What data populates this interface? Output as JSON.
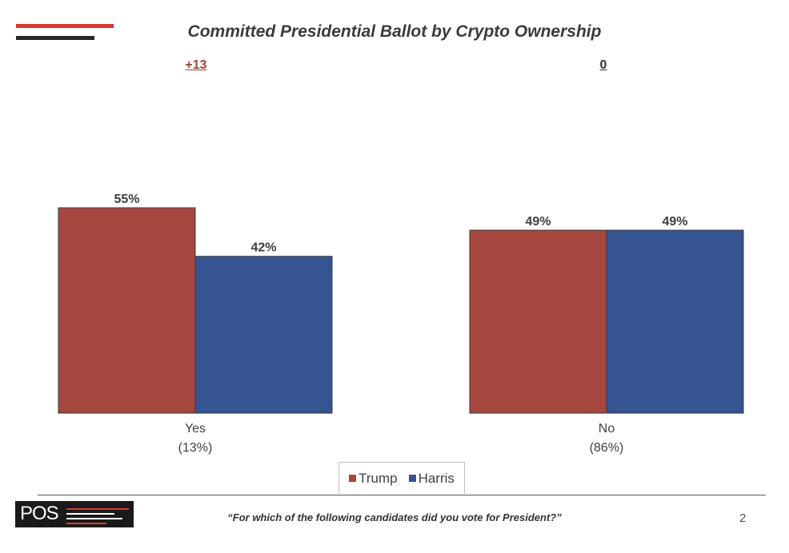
{
  "title": "Committed Presidential Ballot by Crypto Ownership",
  "margins": [
    "+13",
    "0"
  ],
  "colors": {
    "trump": "#a5463f",
    "harris": "#365392",
    "accent_red": "#d73a31"
  },
  "chart_data": {
    "type": "bar",
    "categories": [
      "Yes\n(13%)",
      "No\n(86%)"
    ],
    "category_lines": [
      [
        "Yes",
        "(13%)"
      ],
      [
        "No",
        "(86%)"
      ]
    ],
    "series": [
      {
        "name": "Trump",
        "values": [
          55,
          49
        ],
        "labels": [
          "55%",
          "49%"
        ]
      },
      {
        "name": "Harris",
        "values": [
          42,
          49
        ],
        "labels": [
          "42%",
          "49%"
        ]
      }
    ],
    "ylim": [
      0,
      60
    ],
    "grid": false,
    "legend_position": "bottom"
  },
  "legend": {
    "trump": "Trump",
    "harris": "Harris"
  },
  "footer": {
    "question": "“For which of the following candidates did you vote for President?”",
    "page": "2",
    "logo": "POS"
  }
}
